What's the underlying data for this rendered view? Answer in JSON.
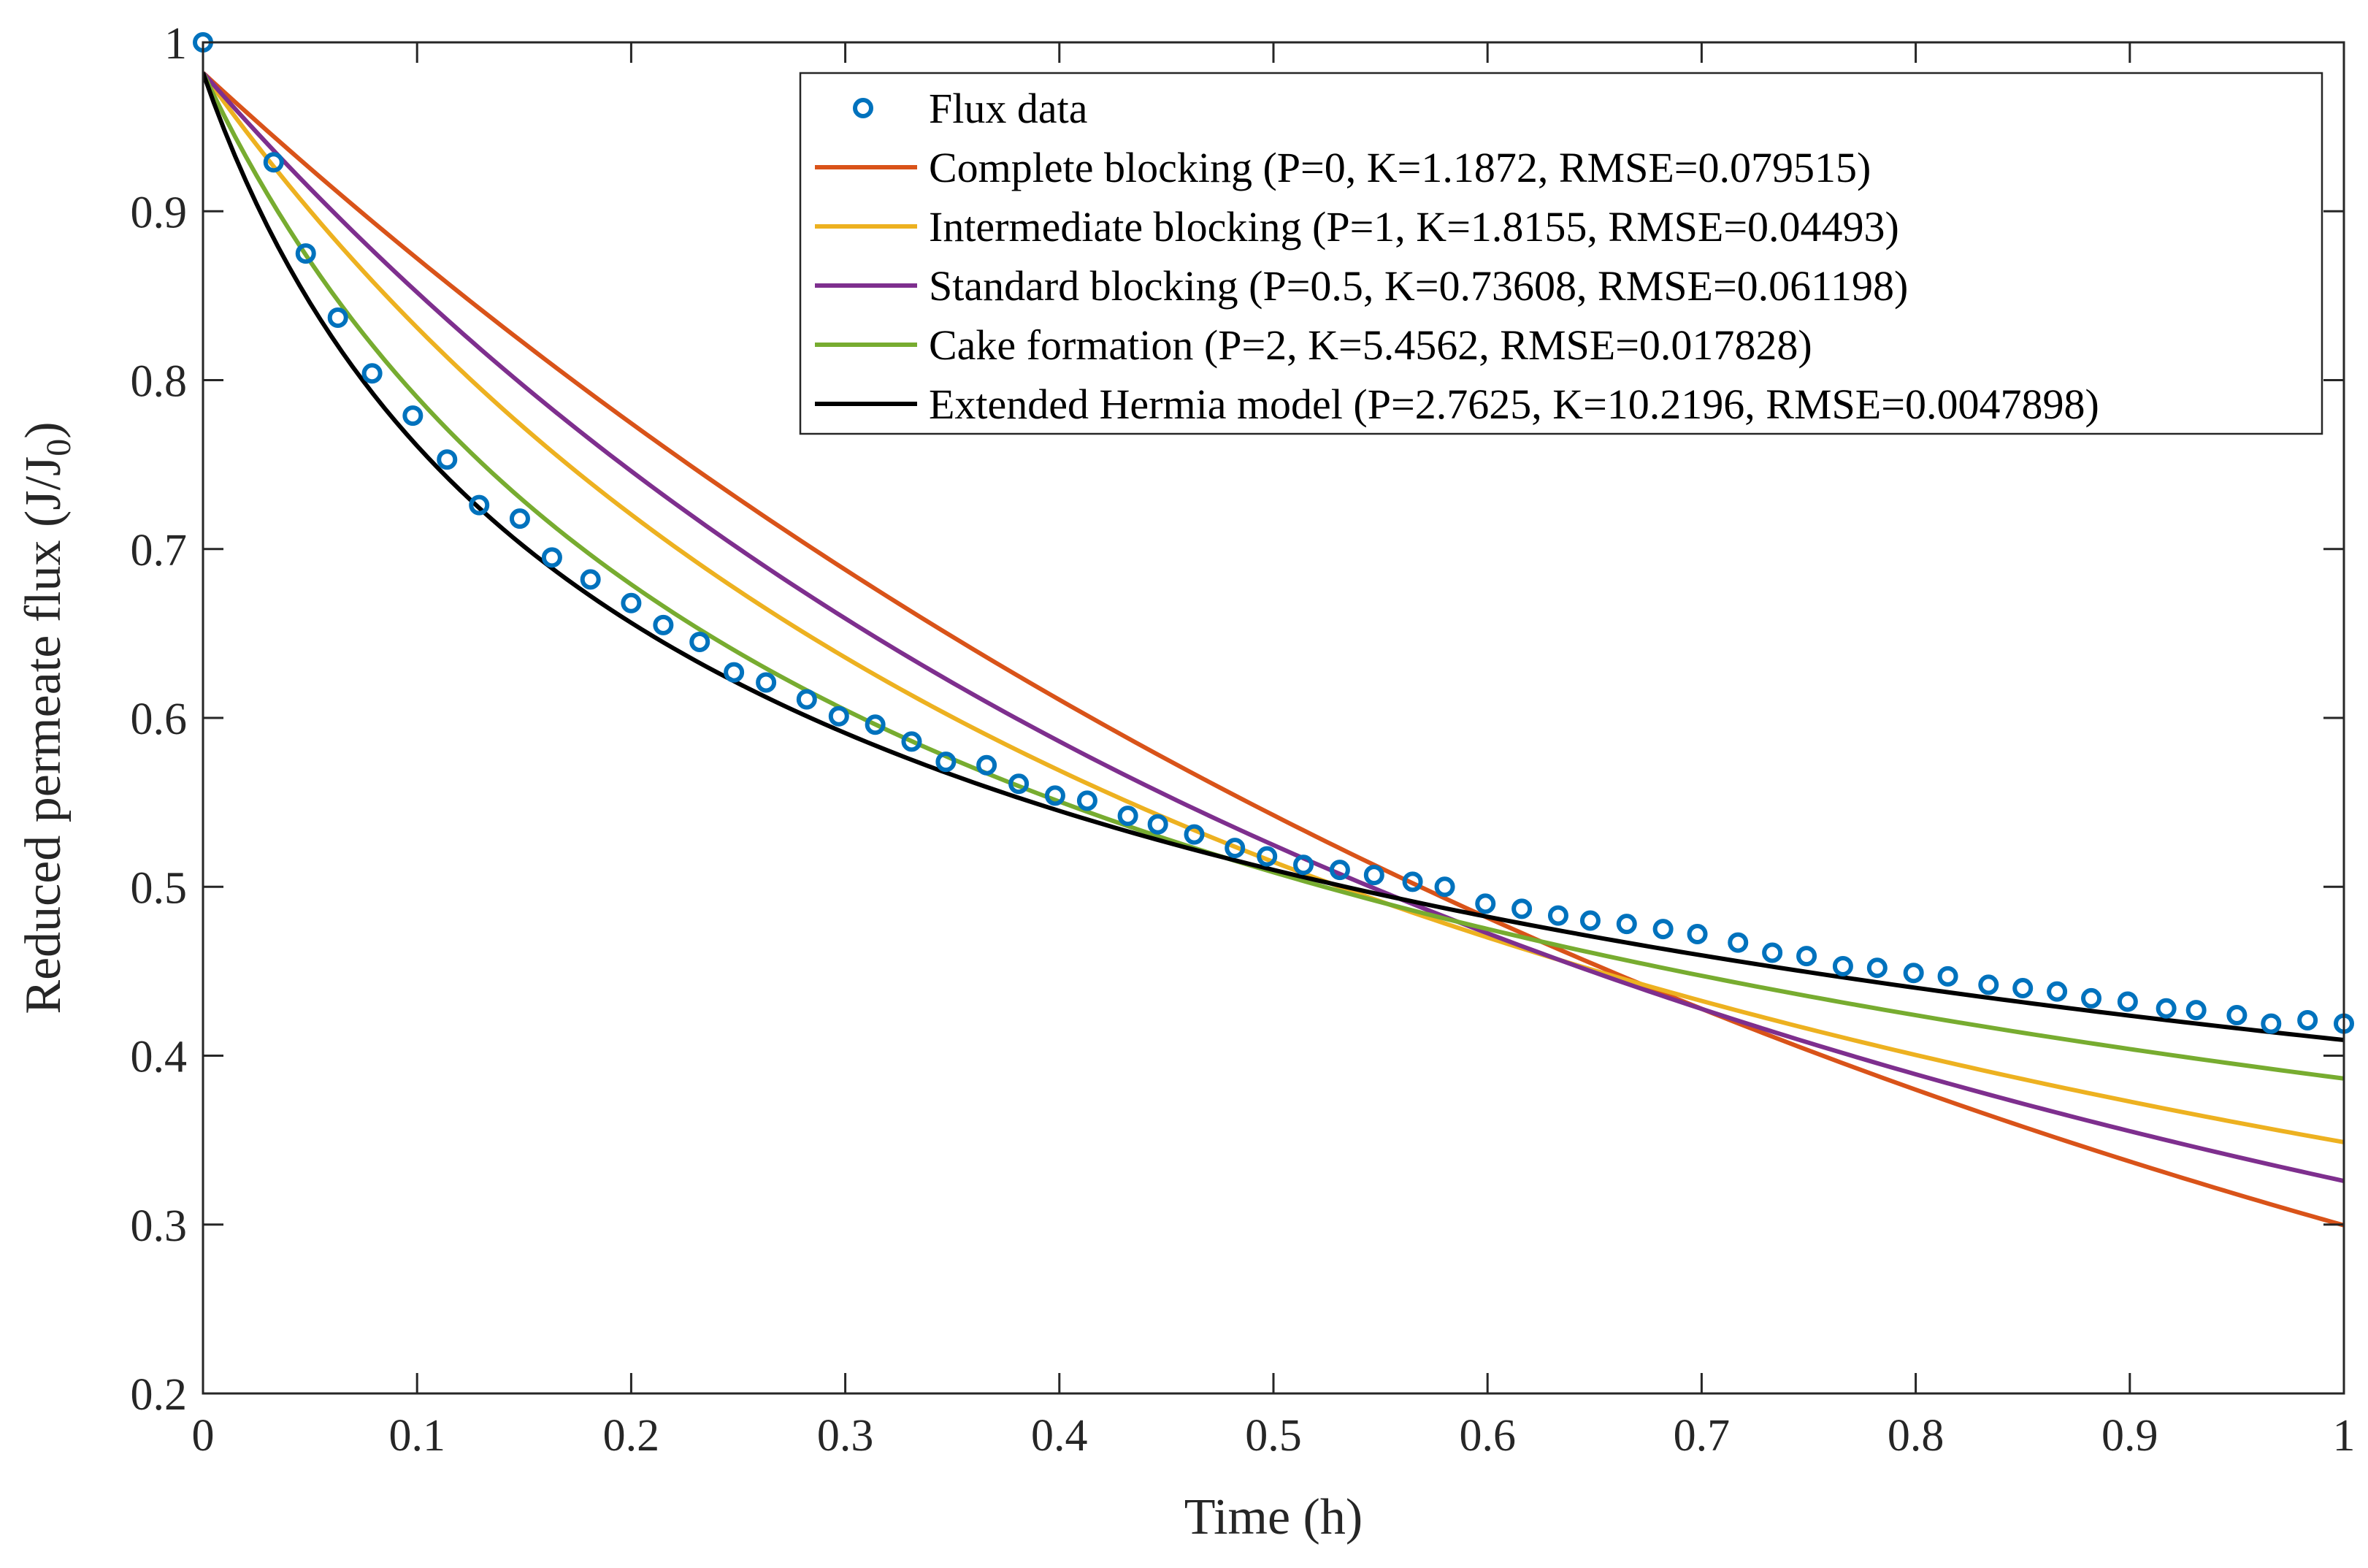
{
  "chart_data": {
    "type": "line",
    "xlabel": "Time (h)",
    "ylabel_main": "Reduced permeate flux (J/J",
    "ylabel_sub": "0",
    "ylabel_close": ")",
    "xlim": [
      0,
      1
    ],
    "ylim": [
      0.2,
      1
    ],
    "xticks": [
      0,
      0.1,
      0.2,
      0.3,
      0.4,
      0.5,
      0.6,
      0.7,
      0.8,
      0.9,
      1
    ],
    "xtick_labels": [
      "0",
      "0.1",
      "0.2",
      "0.3",
      "0.4",
      "0.5",
      "0.6",
      "0.7",
      "0.8",
      "0.9",
      "1"
    ],
    "yticks": [
      0.2,
      0.3,
      0.4,
      0.5,
      0.6,
      0.7,
      0.8,
      0.9,
      1
    ],
    "ytick_labels": [
      "0.2",
      "0.3",
      "0.4",
      "0.5",
      "0.6",
      "0.7",
      "0.8",
      "0.9",
      "1"
    ],
    "grid": false,
    "legend_position": "top-right",
    "J0": 0.982,
    "scatter": {
      "name": "Flux data",
      "color": "#0072BD",
      "x": [
        0,
        0.033,
        0.048,
        0.063,
        0.079,
        0.098,
        0.114,
        0.129,
        0.148,
        0.163,
        0.181,
        0.2,
        0.215,
        0.232,
        0.248,
        0.263,
        0.282,
        0.297,
        0.314,
        0.331,
        0.347,
        0.366,
        0.381,
        0.398,
        0.413,
        0.432,
        0.446,
        0.463,
        0.482,
        0.497,
        0.514,
        0.531,
        0.547,
        0.565,
        0.58,
        0.599,
        0.616,
        0.633,
        0.648,
        0.665,
        0.682,
        0.698,
        0.717,
        0.733,
        0.749,
        0.766,
        0.782,
        0.799,
        0.815,
        0.834,
        0.85,
        0.866,
        0.882,
        0.899,
        0.917,
        0.931,
        0.95,
        0.966,
        0.983,
        1
      ],
      "y": [
        1.0,
        0.929,
        0.875,
        0.837,
        0.804,
        0.779,
        0.753,
        0.726,
        0.718,
        0.695,
        0.682,
        0.668,
        0.655,
        0.645,
        0.627,
        0.621,
        0.611,
        0.601,
        0.596,
        0.586,
        0.574,
        0.572,
        0.561,
        0.554,
        0.551,
        0.542,
        0.537,
        0.531,
        0.523,
        0.518,
        0.513,
        0.51,
        0.507,
        0.503,
        0.5,
        0.49,
        0.487,
        0.483,
        0.48,
        0.478,
        0.475,
        0.472,
        0.467,
        0.461,
        0.459,
        0.453,
        0.452,
        0.449,
        0.447,
        0.442,
        0.44,
        0.438,
        0.434,
        0.432,
        0.428,
        0.427,
        0.424,
        0.419,
        0.421,
        0.419
      ]
    },
    "series": [
      {
        "name": "Complete blocking (P=0, K=1.1872, RMSE=0.079515)",
        "color": "#D95319",
        "P": 0,
        "K": 1.1872
      },
      {
        "name": "Intermediate blocking (P=1, K=1.8155, RMSE=0.04493)",
        "color": "#EDB120",
        "P": 1,
        "K": 1.8155
      },
      {
        "name": "Standard blocking (P=0.5, K=0.73608, RMSE=0.061198)",
        "color": "#7E2F8E",
        "P": 0.5,
        "K": 0.73608
      },
      {
        "name": "Cake formation (P=2, K=5.4562, RMSE=0.017828)",
        "color": "#77AC30",
        "P": 2,
        "K": 5.4562
      },
      {
        "name": "Extended Hermia model (P=2.7625, K=10.2196, RMSE=0.0047898)",
        "color": "#000000",
        "P": 2.7625,
        "K": 10.2196
      }
    ]
  }
}
